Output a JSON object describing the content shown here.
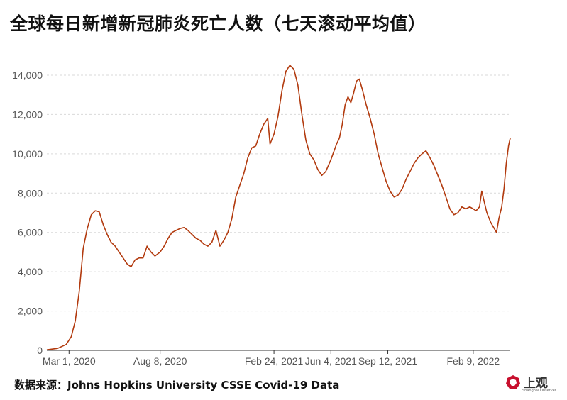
{
  "title": "全球每日新增新冠肺炎死亡人数（七天滚动平均值）",
  "source": "数据来源：Johns Hopkins University CSSE Covid-19 Data",
  "logo": {
    "text": "上观",
    "subtext": "Shanghai Observer"
  },
  "colors": {
    "line": "#b23a0e",
    "grid": "#d9d9d9",
    "axis": "#333333",
    "tick_text": "#555555",
    "logo_red": "#c8102e"
  },
  "chart_data": {
    "type": "line",
    "title": "全球每日新增新冠肺炎死亡人数（七天滚动平均值）",
    "xlabel": "",
    "ylabel": "",
    "ylim": [
      0,
      14000
    ],
    "grid": "horizontal dashed",
    "xlim": [
      "2020-01-22",
      "2022-04-15"
    ],
    "x_ticks": [
      {
        "date": "2020-03-01",
        "label": "Mar 1, 2020"
      },
      {
        "date": "2020-08-08",
        "label": "Aug 8, 2020"
      },
      {
        "date": "2021-02-24",
        "label": "Feb 24, 2021"
      },
      {
        "date": "2021-06-04",
        "label": "Jun 4, 2021"
      },
      {
        "date": "2021-09-12",
        "label": "Sep 12, 2021"
      },
      {
        "date": "2022-02-09",
        "label": "Feb 9, 2022"
      }
    ],
    "y_ticks": [
      {
        "value": 0,
        "label": "0"
      },
      {
        "value": 2000,
        "label": "2,000"
      },
      {
        "value": 4000,
        "label": "4,000"
      },
      {
        "value": 6000,
        "label": "6,000"
      },
      {
        "value": 8000,
        "label": "8,000"
      },
      {
        "value": 10000,
        "label": "10,000"
      },
      {
        "value": 12000,
        "label": "12,000"
      },
      {
        "value": 14000,
        "label": "14,000"
      }
    ],
    "series": [
      {
        "points": [
          [
            "2020-01-22",
            30
          ],
          [
            "2020-02-10",
            100
          ],
          [
            "2020-02-25",
            300
          ],
          [
            "2020-03-05",
            700
          ],
          [
            "2020-03-12",
            1500
          ],
          [
            "2020-03-19",
            3000
          ],
          [
            "2020-03-26",
            5200
          ],
          [
            "2020-04-02",
            6200
          ],
          [
            "2020-04-09",
            6900
          ],
          [
            "2020-04-16",
            7100
          ],
          [
            "2020-04-23",
            7050
          ],
          [
            "2020-04-30",
            6400
          ],
          [
            "2020-05-07",
            5900
          ],
          [
            "2020-05-14",
            5500
          ],
          [
            "2020-05-21",
            5300
          ],
          [
            "2020-05-28",
            5000
          ],
          [
            "2020-06-04",
            4700
          ],
          [
            "2020-06-11",
            4400
          ],
          [
            "2020-06-18",
            4250
          ],
          [
            "2020-06-25",
            4600
          ],
          [
            "2020-07-02",
            4700
          ],
          [
            "2020-07-09",
            4700
          ],
          [
            "2020-07-16",
            5300
          ],
          [
            "2020-07-23",
            5000
          ],
          [
            "2020-07-30",
            4800
          ],
          [
            "2020-08-08",
            5000
          ],
          [
            "2020-08-15",
            5300
          ],
          [
            "2020-08-22",
            5700
          ],
          [
            "2020-08-29",
            6000
          ],
          [
            "2020-09-05",
            6100
          ],
          [
            "2020-09-12",
            6200
          ],
          [
            "2020-09-19",
            6250
          ],
          [
            "2020-09-26",
            6100
          ],
          [
            "2020-10-03",
            5900
          ],
          [
            "2020-10-10",
            5700
          ],
          [
            "2020-10-17",
            5600
          ],
          [
            "2020-10-24",
            5400
          ],
          [
            "2020-10-31",
            5300
          ],
          [
            "2020-11-07",
            5500
          ],
          [
            "2020-11-14",
            6100
          ],
          [
            "2020-11-21",
            5300
          ],
          [
            "2020-11-28",
            5600
          ],
          [
            "2020-12-05",
            6000
          ],
          [
            "2020-12-12",
            6700
          ],
          [
            "2020-12-19",
            7800
          ],
          [
            "2020-12-26",
            8400
          ],
          [
            "2021-01-02",
            9000
          ],
          [
            "2021-01-09",
            9800
          ],
          [
            "2021-01-16",
            10300
          ],
          [
            "2021-01-23",
            10400
          ],
          [
            "2021-01-30",
            11000
          ],
          [
            "2021-02-06",
            11500
          ],
          [
            "2021-02-13",
            11800
          ],
          [
            "2021-02-17",
            10500
          ],
          [
            "2021-02-24",
            11000
          ],
          [
            "2021-03-03",
            11900
          ],
          [
            "2021-03-10",
            13200
          ],
          [
            "2021-03-17",
            14200
          ],
          [
            "2021-03-24",
            14500
          ],
          [
            "2021-03-31",
            14300
          ],
          [
            "2021-04-07",
            13500
          ],
          [
            "2021-04-14",
            12000
          ],
          [
            "2021-04-21",
            10700
          ],
          [
            "2021-04-28",
            10000
          ],
          [
            "2021-05-05",
            9700
          ],
          [
            "2021-05-12",
            9200
          ],
          [
            "2021-05-19",
            8900
          ],
          [
            "2021-05-26",
            9100
          ],
          [
            "2021-06-04",
            9700
          ],
          [
            "2021-06-09",
            10100
          ],
          [
            "2021-06-14",
            10500
          ],
          [
            "2021-06-19",
            10800
          ],
          [
            "2021-06-24",
            11500
          ],
          [
            "2021-06-29",
            12500
          ],
          [
            "2021-07-04",
            12900
          ],
          [
            "2021-07-09",
            12600
          ],
          [
            "2021-07-14",
            13100
          ],
          [
            "2021-07-19",
            13700
          ],
          [
            "2021-07-24",
            13800
          ],
          [
            "2021-07-29",
            13300
          ],
          [
            "2021-08-05",
            12500
          ],
          [
            "2021-08-12",
            11800
          ],
          [
            "2021-08-19",
            11000
          ],
          [
            "2021-08-26",
            10000
          ],
          [
            "2021-09-02",
            9300
          ],
          [
            "2021-09-09",
            8600
          ],
          [
            "2021-09-16",
            8100
          ],
          [
            "2021-09-23",
            7800
          ],
          [
            "2021-09-30",
            7900
          ],
          [
            "2021-10-07",
            8200
          ],
          [
            "2021-10-14",
            8700
          ],
          [
            "2021-10-21",
            9100
          ],
          [
            "2021-10-28",
            9500
          ],
          [
            "2021-11-04",
            9800
          ],
          [
            "2021-11-11",
            10000
          ],
          [
            "2021-11-18",
            10150
          ],
          [
            "2021-11-25",
            9800
          ],
          [
            "2021-12-02",
            9400
          ],
          [
            "2021-12-09",
            8900
          ],
          [
            "2021-12-16",
            8400
          ],
          [
            "2021-12-23",
            7800
          ],
          [
            "2021-12-30",
            7200
          ],
          [
            "2022-01-06",
            6900
          ],
          [
            "2022-01-13",
            7000
          ],
          [
            "2022-01-20",
            7300
          ],
          [
            "2022-01-27",
            7200
          ],
          [
            "2022-02-03",
            7300
          ],
          [
            "2022-02-09",
            7200
          ],
          [
            "2022-02-14",
            7100
          ],
          [
            "2022-02-20",
            7300
          ],
          [
            "2022-02-24",
            8100
          ],
          [
            "2022-02-28",
            7600
          ],
          [
            "2022-03-05",
            7000
          ],
          [
            "2022-03-12",
            6500
          ],
          [
            "2022-03-18",
            6200
          ],
          [
            "2022-03-22",
            6000
          ],
          [
            "2022-03-26",
            6700
          ],
          [
            "2022-03-31",
            7300
          ],
          [
            "2022-04-04",
            8200
          ],
          [
            "2022-04-08",
            9500
          ],
          [
            "2022-04-12",
            10400
          ],
          [
            "2022-04-15",
            10800
          ]
        ]
      }
    ]
  }
}
